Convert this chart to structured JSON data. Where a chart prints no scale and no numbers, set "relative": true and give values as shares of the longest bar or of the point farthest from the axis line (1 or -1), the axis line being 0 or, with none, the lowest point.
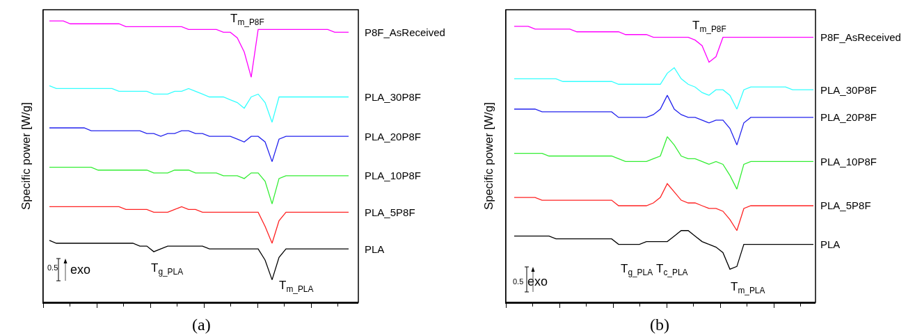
{
  "chart_data": [
    {
      "type": "line",
      "ylabel": "Specific power [W/g]",
      "relative": true,
      "legend": false,
      "categories": [
        null,
        null,
        null,
        null,
        null,
        null,
        null,
        null,
        null,
        null,
        null,
        null,
        null,
        null,
        null,
        null,
        null,
        null,
        null,
        null,
        null,
        null,
        null,
        null,
        null,
        null,
        null,
        null,
        null,
        null,
        null,
        null,
        null,
        null,
        null,
        null,
        null,
        null,
        null,
        null,
        null,
        null,
        null,
        null
      ],
      "series": [
        {
          "name": "P8F_AsReceived",
          "color": "#ff00ff",
          "values": [
            1.0,
            1.0,
            1.0,
            0.99,
            0.99,
            0.99,
            0.99,
            0.99,
            0.99,
            0.99,
            0.99,
            0.98,
            0.98,
            0.98,
            0.98,
            0.98,
            0.98,
            0.98,
            0.98,
            0.98,
            0.97,
            0.97,
            0.97,
            0.97,
            0.97,
            0.96,
            0.96,
            0.94,
            0.89,
            0.8,
            0.97,
            0.97,
            0.97,
            0.97,
            0.97,
            0.97,
            0.97,
            0.97,
            0.97,
            0.97,
            0.97,
            0.96,
            0.96,
            0.96
          ]
        },
        {
          "name": "PLA_30P8F",
          "color": "#33ffff",
          "values": [
            0.77,
            0.76,
            0.76,
            0.76,
            0.76,
            0.76,
            0.76,
            0.76,
            0.76,
            0.76,
            0.75,
            0.75,
            0.75,
            0.75,
            0.75,
            0.74,
            0.74,
            0.74,
            0.75,
            0.75,
            0.76,
            0.75,
            0.74,
            0.73,
            0.73,
            0.73,
            0.72,
            0.71,
            0.69,
            0.73,
            0.74,
            0.71,
            0.64,
            0.73,
            0.73,
            0.73,
            0.73,
            0.73,
            0.73,
            0.73,
            0.73,
            0.73,
            0.73,
            0.73
          ]
        },
        {
          "name": "PLA_20P8F",
          "color": "#2222ee",
          "values": [
            0.62,
            0.62,
            0.62,
            0.62,
            0.62,
            0.62,
            0.61,
            0.61,
            0.61,
            0.61,
            0.61,
            0.61,
            0.61,
            0.61,
            0.6,
            0.6,
            0.59,
            0.6,
            0.6,
            0.61,
            0.61,
            0.6,
            0.6,
            0.59,
            0.59,
            0.59,
            0.59,
            0.58,
            0.57,
            0.59,
            0.59,
            0.57,
            0.5,
            0.58,
            0.59,
            0.59,
            0.59,
            0.59,
            0.59,
            0.59,
            0.59,
            0.59,
            0.59,
            0.59
          ]
        },
        {
          "name": "PLA_10P8F",
          "color": "#33ee33",
          "values": [
            0.48,
            0.48,
            0.48,
            0.48,
            0.48,
            0.48,
            0.48,
            0.47,
            0.47,
            0.47,
            0.47,
            0.47,
            0.47,
            0.47,
            0.47,
            0.46,
            0.46,
            0.46,
            0.47,
            0.47,
            0.47,
            0.46,
            0.46,
            0.46,
            0.46,
            0.45,
            0.45,
            0.45,
            0.44,
            0.46,
            0.46,
            0.43,
            0.35,
            0.44,
            0.45,
            0.45,
            0.45,
            0.45,
            0.45,
            0.45,
            0.45,
            0.45,
            0.45,
            0.45
          ]
        },
        {
          "name": "PLA_5P8F",
          "color": "#ff2222",
          "values": [
            0.34,
            0.34,
            0.34,
            0.34,
            0.34,
            0.34,
            0.34,
            0.34,
            0.34,
            0.34,
            0.34,
            0.33,
            0.33,
            0.33,
            0.33,
            0.32,
            0.32,
            0.32,
            0.33,
            0.34,
            0.33,
            0.33,
            0.32,
            0.32,
            0.32,
            0.32,
            0.32,
            0.32,
            0.32,
            0.32,
            0.32,
            0.27,
            0.21,
            0.29,
            0.32,
            0.32,
            0.32,
            0.32,
            0.32,
            0.32,
            0.32,
            0.32,
            0.32,
            0.32
          ]
        },
        {
          "name": "PLA",
          "color": "#000000",
          "values": [
            0.22,
            0.21,
            0.21,
            0.21,
            0.21,
            0.21,
            0.21,
            0.21,
            0.21,
            0.21,
            0.21,
            0.21,
            0.21,
            0.2,
            0.2,
            0.18,
            0.19,
            0.2,
            0.2,
            0.2,
            0.2,
            0.2,
            0.2,
            0.19,
            0.19,
            0.19,
            0.19,
            0.19,
            0.19,
            0.19,
            0.19,
            0.15,
            0.08,
            0.16,
            0.19,
            0.19,
            0.19,
            0.19,
            0.19,
            0.19,
            0.19,
            0.19,
            0.19,
            0.19
          ]
        }
      ],
      "annotations": [
        "T$_{m_P8F}$",
        "T$_{g_PLA}$",
        "T$_{m_PLA}$",
        "0.5",
        "exo",
        "(a)"
      ]
    },
    {
      "type": "line",
      "ylabel": "Specific power [W/g]",
      "relative": true,
      "legend": false,
      "categories": [
        null,
        null,
        null,
        null,
        null,
        null,
        null,
        null,
        null,
        null,
        null,
        null,
        null,
        null,
        null,
        null,
        null,
        null,
        null,
        null,
        null,
        null,
        null,
        null,
        null,
        null,
        null,
        null,
        null,
        null,
        null,
        null,
        null,
        null,
        null,
        null,
        null,
        null,
        null,
        null,
        null,
        null,
        null,
        null
      ],
      "series": [
        {
          "name": "P8F_AsReceived",
          "color": "#ff00ff",
          "values": [
            1.0,
            1.0,
            1.0,
            0.99,
            0.99,
            0.99,
            0.99,
            0.99,
            0.99,
            0.98,
            0.98,
            0.98,
            0.98,
            0.98,
            0.98,
            0.98,
            0.97,
            0.97,
            0.97,
            0.97,
            0.96,
            0.96,
            0.96,
            0.96,
            0.96,
            0.96,
            0.95,
            0.93,
            0.87,
            0.89,
            0.96,
            0.96,
            0.96,
            0.96,
            0.96,
            0.96,
            0.96,
            0.96,
            0.96,
            0.96,
            0.96,
            0.96,
            0.96,
            0.96
          ]
        },
        {
          "name": "PLA_30P8F",
          "color": "#33ffff",
          "values": [
            0.81,
            0.81,
            0.81,
            0.81,
            0.81,
            0.81,
            0.81,
            0.8,
            0.8,
            0.8,
            0.8,
            0.8,
            0.8,
            0.8,
            0.8,
            0.79,
            0.79,
            0.79,
            0.79,
            0.79,
            0.79,
            0.79,
            0.83,
            0.85,
            0.81,
            0.79,
            0.78,
            0.76,
            0.75,
            0.77,
            0.77,
            0.75,
            0.7,
            0.77,
            0.78,
            0.78,
            0.78,
            0.78,
            0.78,
            0.78,
            0.77,
            0.77,
            0.77,
            0.77
          ]
        },
        {
          "name": "PLA_20P8F",
          "color": "#2222ee",
          "values": [
            0.7,
            0.7,
            0.7,
            0.7,
            0.69,
            0.69,
            0.69,
            0.69,
            0.69,
            0.69,
            0.69,
            0.69,
            0.69,
            0.69,
            0.69,
            0.67,
            0.67,
            0.67,
            0.67,
            0.67,
            0.68,
            0.7,
            0.75,
            0.7,
            0.68,
            0.67,
            0.67,
            0.66,
            0.65,
            0.66,
            0.66,
            0.63,
            0.57,
            0.65,
            0.67,
            0.67,
            0.67,
            0.67,
            0.67,
            0.67,
            0.67,
            0.67,
            0.67,
            0.67
          ]
        },
        {
          "name": "PLA_10P8F",
          "color": "#33ee33",
          "values": [
            0.54,
            0.54,
            0.54,
            0.54,
            0.54,
            0.53,
            0.53,
            0.53,
            0.53,
            0.53,
            0.53,
            0.53,
            0.53,
            0.53,
            0.53,
            0.52,
            0.51,
            0.51,
            0.51,
            0.51,
            0.52,
            0.53,
            0.6,
            0.57,
            0.53,
            0.52,
            0.52,
            0.51,
            0.5,
            0.51,
            0.5,
            0.46,
            0.41,
            0.5,
            0.51,
            0.51,
            0.51,
            0.51,
            0.51,
            0.51,
            0.51,
            0.51,
            0.51,
            0.51
          ]
        },
        {
          "name": "PLA_5P8F",
          "color": "#ff2222",
          "values": [
            0.38,
            0.38,
            0.38,
            0.38,
            0.37,
            0.37,
            0.37,
            0.37,
            0.37,
            0.37,
            0.37,
            0.37,
            0.37,
            0.37,
            0.37,
            0.35,
            0.35,
            0.35,
            0.35,
            0.35,
            0.36,
            0.38,
            0.43,
            0.4,
            0.37,
            0.36,
            0.36,
            0.35,
            0.34,
            0.34,
            0.33,
            0.3,
            0.26,
            0.34,
            0.35,
            0.35,
            0.35,
            0.35,
            0.35,
            0.35,
            0.35,
            0.35,
            0.35,
            0.35
          ]
        },
        {
          "name": "PLA",
          "color": "#000000",
          "values": [
            0.24,
            0.24,
            0.24,
            0.24,
            0.24,
            0.24,
            0.23,
            0.23,
            0.23,
            0.23,
            0.23,
            0.23,
            0.23,
            0.23,
            0.23,
            0.21,
            0.21,
            0.21,
            0.21,
            0.22,
            0.22,
            0.22,
            0.22,
            0.24,
            0.26,
            0.26,
            0.24,
            0.22,
            0.21,
            0.2,
            0.18,
            0.12,
            0.13,
            0.21,
            0.21,
            0.21,
            0.21,
            0.21,
            0.21,
            0.21,
            0.21,
            0.21,
            0.21,
            0.21
          ]
        }
      ],
      "annotations": [
        "T$_{m_P8F}$",
        "T$_{g_PLA}$",
        "T$_{c_PLA}$",
        "T$_{m_PLA}$",
        "0.5",
        "exo",
        "(b)"
      ]
    }
  ]
}
